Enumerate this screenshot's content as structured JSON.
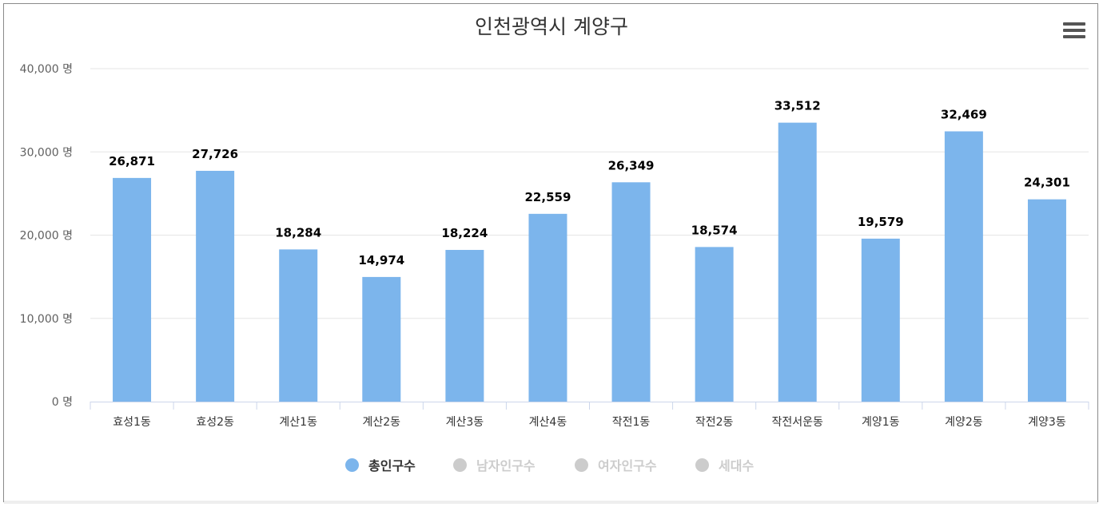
{
  "title": "인천광역시 계양구",
  "chart_data": {
    "type": "bar",
    "title": "인천광역시 계양구",
    "categories": [
      "효성1동",
      "효성2동",
      "계산1동",
      "계산2동",
      "계산3동",
      "계산4동",
      "작전1동",
      "작전2동",
      "작전서운동",
      "계양1동",
      "계양2동",
      "계양3동"
    ],
    "series": [
      {
        "name": "총인구수",
        "values": [
          26871,
          27726,
          18284,
          14974,
          18224,
          22559,
          26349,
          18574,
          33512,
          19579,
          32469,
          24301
        ]
      }
    ],
    "data_labels": [
      "26,871",
      "27,726",
      "18,284",
      "14,974",
      "18,224",
      "22,559",
      "26,349",
      "18,574",
      "33,512",
      "19,579",
      "32,469",
      "24,301"
    ],
    "y_ticks": [
      0,
      10000,
      20000,
      30000,
      40000
    ],
    "y_tick_labels": [
      "0 명",
      "10,000 명",
      "20,000 명",
      "30,000 명",
      "40,000 명"
    ],
    "ylim": [
      0,
      40000
    ],
    "grid": true,
    "legend_position": "bottom",
    "bar_color": "#7cb5ec"
  },
  "legend": [
    {
      "label": "총인구수",
      "active": true,
      "color": "#7cb5ec"
    },
    {
      "label": "남자인구수",
      "active": false,
      "color": "#cccccc"
    },
    {
      "label": "여자인구수",
      "active": false,
      "color": "#cccccc"
    },
    {
      "label": "세대수",
      "active": false,
      "color": "#cccccc"
    }
  ],
  "menu_icon": "hamburger-menu-icon"
}
